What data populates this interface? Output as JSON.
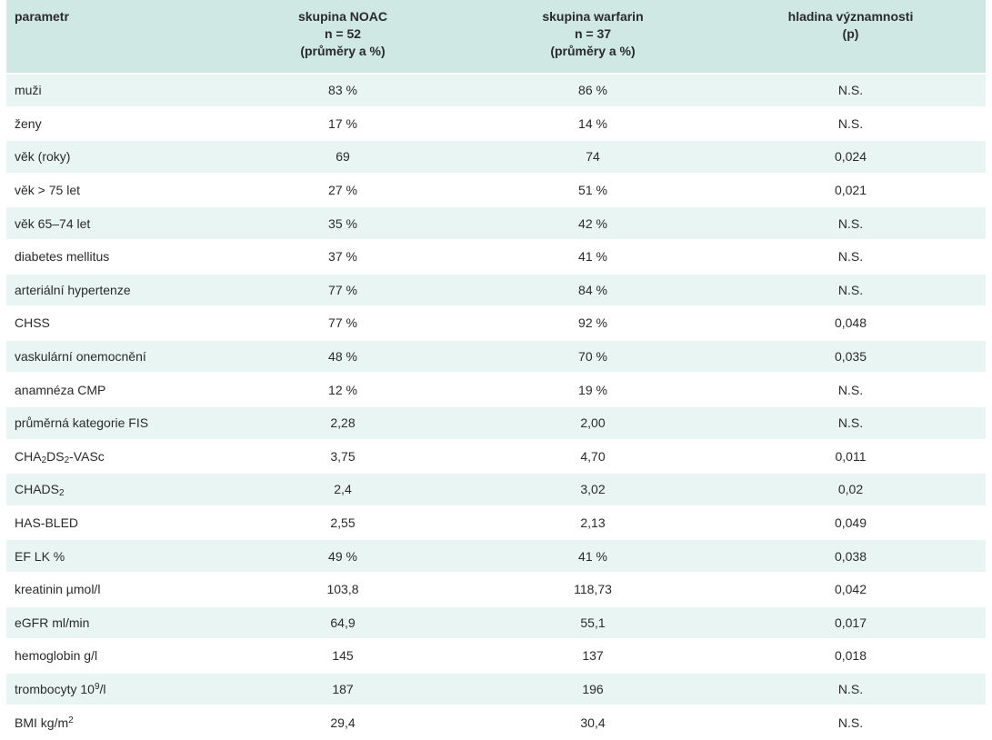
{
  "table": {
    "headers": {
      "param": "parametr",
      "noac": [
        "skupina NOAC",
        "n = 52",
        "(průměry a %)"
      ],
      "warfarin": [
        "skupina warfarin",
        "n = 37",
        "(průměry a %)"
      ],
      "p": [
        "hladina významnosti",
        "(p)"
      ]
    },
    "rows": [
      {
        "param": "muži",
        "noac": "83 %",
        "warfarin": "86 %",
        "p": "N.S."
      },
      {
        "param": "ženy",
        "noac": "17 %",
        "warfarin": "14 %",
        "p": "N.S."
      },
      {
        "param": "věk (roky)",
        "noac": "69",
        "warfarin": "74",
        "p": "0,024"
      },
      {
        "param": "věk > 75 let",
        "noac": "27 %",
        "warfarin": "51 %",
        "p": "0,021"
      },
      {
        "param": "věk 65–74 let",
        "noac": "35 %",
        "warfarin": "42 %",
        "p": "N.S."
      },
      {
        "param": "diabetes mellitus",
        "noac": "37 %",
        "warfarin": "41 %",
        "p": "N.S."
      },
      {
        "param": "arteriální hypertenze",
        "noac": "77 %",
        "warfarin": "84 %",
        "p": "N.S."
      },
      {
        "param": "CHSS",
        "noac": "77 %",
        "warfarin": "92 %",
        "p": "0,048"
      },
      {
        "param": "vaskulární onemocnění",
        "noac": "48 %",
        "warfarin": "70 %",
        "p": "0,035"
      },
      {
        "param": "anamnéza CMP",
        "noac": "12 %",
        "warfarin": "19 %",
        "p": "N.S."
      },
      {
        "param": "průměrná kategorie FIS",
        "noac": "2,28",
        "warfarin": "2,00",
        "p": "N.S."
      },
      {
        "param": "",
        "param_parts": [
          "CHA",
          "2",
          "DS",
          "2",
          "-VASc"
        ],
        "noac": "3,75",
        "warfarin": "4,70",
        "p": "0,011"
      },
      {
        "param": "",
        "param_parts": [
          "CHADS",
          "2"
        ],
        "noac": "2,4",
        "warfarin": "3,02",
        "p": "0,02"
      },
      {
        "param": "HAS-BLED",
        "noac": "2,55",
        "warfarin": "2,13",
        "p": "0,049"
      },
      {
        "param": "EF LK %",
        "noac": "49 %",
        "warfarin": "41 %",
        "p": "0,038"
      },
      {
        "param": "kreatinin µmol/l",
        "noac": "103,8",
        "warfarin": "118,73",
        "p": "0,042"
      },
      {
        "param": "eGFR ml/min",
        "noac": "64,9",
        "warfarin": "55,1",
        "p": "0,017"
      },
      {
        "param": "hemoglobin g/l",
        "noac": "145",
        "warfarin": "137",
        "p": "0,018"
      },
      {
        "param": "",
        "param_parts": [
          "trombocyty 10",
          "9",
          "/l"
        ],
        "noac": "187",
        "warfarin": "196",
        "p": "N.S."
      },
      {
        "param": "",
        "param_parts": [
          "BMI kg/m",
          "2"
        ],
        "noac": "29,4",
        "warfarin": "30,4",
        "p": "N.S."
      }
    ]
  },
  "colors": {
    "header_bg": "#cfe8e4",
    "odd_row_bg": "#e9f5f3",
    "even_row_bg": "#ffffff"
  }
}
